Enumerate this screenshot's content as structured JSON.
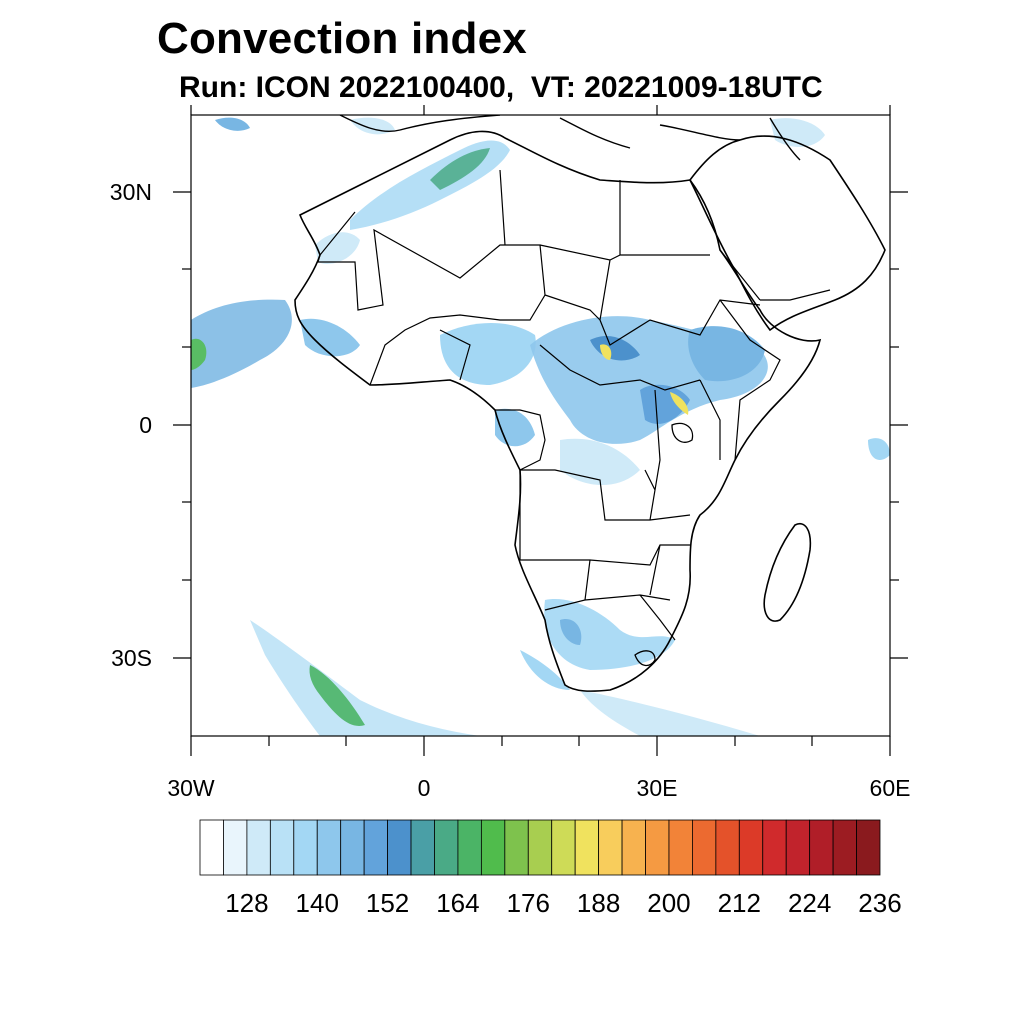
{
  "title": "Convection index",
  "subtitle": "Run: ICON 2022100400,  VT: 20221009-18UTC",
  "map": {
    "lon_range": [
      -30,
      60
    ],
    "lat_range": [
      -40,
      40
    ],
    "lat_ticks": [
      {
        "value": 30,
        "label": "30N"
      },
      {
        "value": 0,
        "label": "0"
      },
      {
        "value": -30,
        "label": "30S"
      }
    ],
    "lon_ticks": [
      {
        "value": -30,
        "label": "30W"
      },
      {
        "value": 0,
        "label": "0"
      },
      {
        "value": 30,
        "label": "30E"
      },
      {
        "value": 60,
        "label": "60E"
      }
    ]
  },
  "colorbar": {
    "colors": [
      "#ffffff",
      "#e9f5fc",
      "#cfeaf8",
      "#b9e1f6",
      "#a3d7f4",
      "#8ec7ec",
      "#78b6e3",
      "#62a3db",
      "#4c91cc",
      "#4a9fa6",
      "#4aaa86",
      "#4bb466",
      "#50bc4c",
      "#7ec24d",
      "#a8ce50",
      "#cedb57",
      "#f0e25e",
      "#f8cd5c",
      "#f7b24f",
      "#f59a42",
      "#f28338",
      "#ec6a30",
      "#e4522a",
      "#dc3a28",
      "#d02a2c",
      "#c1232c",
      "#b01e28",
      "#9c1c22",
      "#8a1a1e"
    ],
    "labels": [
      "128",
      "140",
      "152",
      "164",
      "176",
      "188",
      "200",
      "212",
      "224",
      "236"
    ]
  }
}
